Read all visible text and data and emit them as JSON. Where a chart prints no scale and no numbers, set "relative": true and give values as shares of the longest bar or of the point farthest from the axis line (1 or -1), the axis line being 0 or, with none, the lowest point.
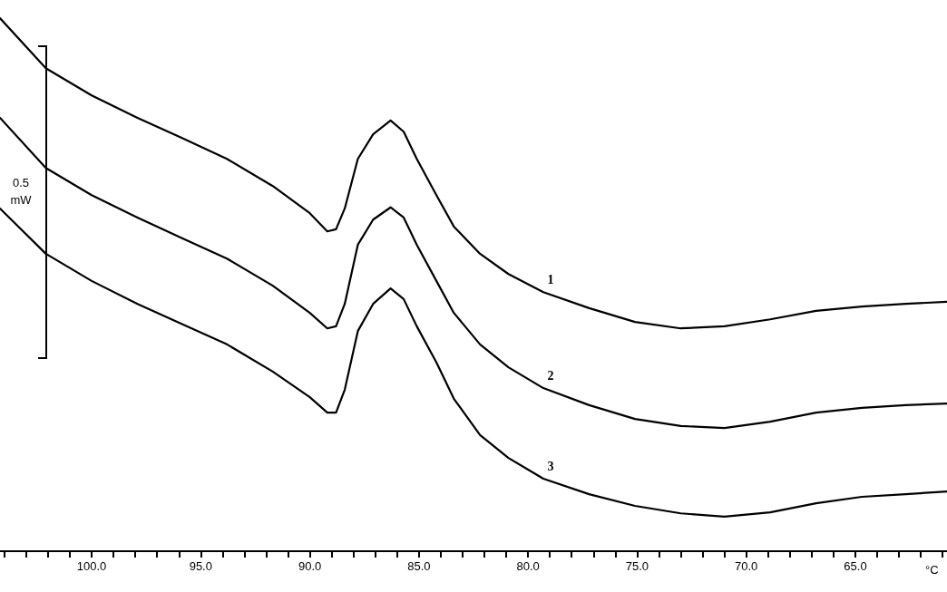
{
  "chart_data": {
    "type": "line",
    "relative": true,
    "xlabel": "°C",
    "tick_labels": "x",
    "marker": "none",
    "line_style": "solid",
    "annotations": [
      "0.5 mW"
    ],
    "xlim": [
      104.2,
      60.8
    ],
    "xticks": [
      {
        "value": 104,
        "label": null
      },
      {
        "value": 103,
        "label": null
      },
      {
        "value": 102,
        "label": null
      },
      {
        "value": 101,
        "label": null
      },
      {
        "value": 100,
        "label": "100.0"
      },
      {
        "value": 99,
        "label": null
      },
      {
        "value": 98,
        "label": null
      },
      {
        "value": 97,
        "label": null
      },
      {
        "value": 96,
        "label": null
      },
      {
        "value": 95,
        "label": "95.0"
      },
      {
        "value": 94,
        "label": null
      },
      {
        "value": 93,
        "label": null
      },
      {
        "value": 92,
        "label": null
      },
      {
        "value": 91,
        "label": null
      },
      {
        "value": 90,
        "label": "90.0"
      },
      {
        "value": 89,
        "label": null
      },
      {
        "value": 88,
        "label": null
      },
      {
        "value": 87,
        "label": null
      },
      {
        "value": 86,
        "label": null
      },
      {
        "value": 85,
        "label": "85.0"
      },
      {
        "value": 84,
        "label": null
      },
      {
        "value": 83,
        "label": null
      },
      {
        "value": 82,
        "label": null
      },
      {
        "value": 81,
        "label": null
      },
      {
        "value": 80,
        "label": "80.0"
      },
      {
        "value": 79,
        "label": null
      },
      {
        "value": 78,
        "label": null
      },
      {
        "value": 77,
        "label": null
      },
      {
        "value": 76,
        "label": null
      },
      {
        "value": 75,
        "label": "75.0"
      },
      {
        "value": 74,
        "label": null
      },
      {
        "value": 73,
        "label": null
      },
      {
        "value": 72,
        "label": null
      },
      {
        "value": 71,
        "label": null
      },
      {
        "value": 70,
        "label": "70.0"
      },
      {
        "value": 69,
        "label": null
      },
      {
        "value": 68,
        "label": null
      },
      {
        "value": 67,
        "label": null
      },
      {
        "value": 66,
        "label": null
      },
      {
        "value": 65,
        "label": "65.0"
      },
      {
        "value": 64,
        "label": null
      },
      {
        "value": 63,
        "label": null
      },
      {
        "value": 62,
        "label": null
      },
      {
        "value": 61,
        "label": null
      }
    ],
    "x": [
      104.2,
      102.1,
      100.0,
      97.9,
      95.9,
      93.8,
      91.7,
      90.0,
      89.2,
      88.8,
      88.4,
      87.8,
      87.1,
      86.3,
      85.7,
      85.1,
      84.2,
      83.4,
      82.2,
      80.9,
      79.3,
      77.2,
      75.1,
      73.0,
      71.0,
      68.9,
      66.8,
      64.7,
      62.7,
      60.8
    ],
    "series": [
      {
        "name": "1",
        "color": "#000000",
        "values": [
          1.0,
          0.906,
          0.855,
          0.813,
          0.776,
          0.736,
          0.685,
          0.634,
          0.6,
          0.604,
          0.643,
          0.736,
          0.782,
          0.808,
          0.787,
          0.736,
          0.668,
          0.609,
          0.558,
          0.52,
          0.486,
          0.456,
          0.43,
          0.418,
          0.422,
          0.435,
          0.451,
          0.459,
          0.464,
          0.468
        ]
      },
      {
        "name": "2",
        "color": "#000000",
        "values": [
          0.813,
          0.719,
          0.668,
          0.626,
          0.588,
          0.549,
          0.498,
          0.447,
          0.418,
          0.422,
          0.464,
          0.575,
          0.622,
          0.645,
          0.626,
          0.575,
          0.507,
          0.447,
          0.388,
          0.345,
          0.306,
          0.274,
          0.248,
          0.235,
          0.231,
          0.243,
          0.26,
          0.269,
          0.274,
          0.277
        ]
      },
      {
        "name": "3",
        "color": "#000000",
        "values": [
          0.643,
          0.558,
          0.507,
          0.464,
          0.427,
          0.388,
          0.337,
          0.289,
          0.26,
          0.26,
          0.303,
          0.413,
          0.464,
          0.493,
          0.473,
          0.422,
          0.354,
          0.286,
          0.218,
          0.175,
          0.136,
          0.107,
          0.085,
          0.071,
          0.065,
          0.073,
          0.09,
          0.102,
          0.107,
          0.112
        ]
      }
    ]
  }
}
